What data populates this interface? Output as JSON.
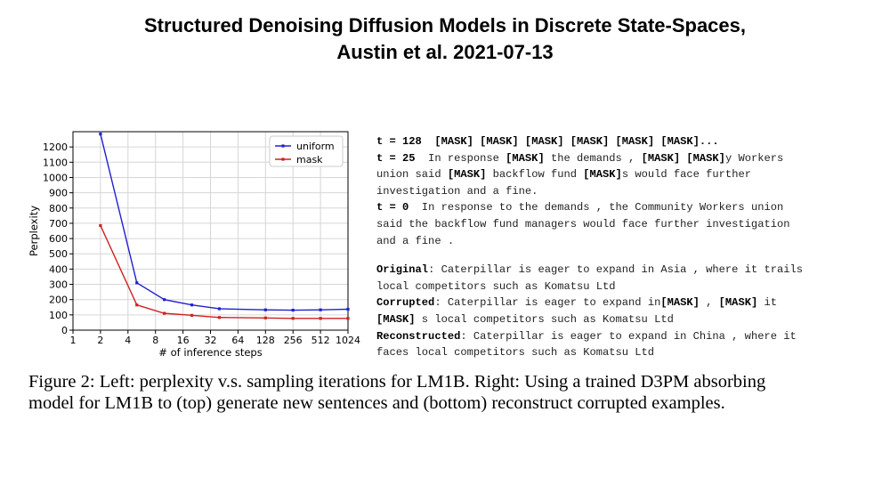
{
  "page_title": {
    "line1": "Structured Denoising Diffusion Models in Discrete State-Spaces,",
    "line2": "Austin et al. 2021-07-13"
  },
  "chart_data": {
    "type": "line",
    "title": "",
    "xlabel": "# of inference steps",
    "ylabel": "Perplexity",
    "x": [
      2,
      5,
      10,
      20,
      40,
      128,
      256,
      512,
      1024
    ],
    "x_scale": "log2",
    "xticks": [
      "1",
      "2",
      "4",
      "8",
      "16",
      "32",
      "64",
      "128",
      "256",
      "512",
      "1024"
    ],
    "yticks": [
      "0",
      "100",
      "200",
      "300",
      "400",
      "500",
      "600",
      "700",
      "800",
      "900",
      "1000",
      "1100",
      "1200"
    ],
    "xlim": [
      1,
      1024
    ],
    "ylim": [
      0,
      1300
    ],
    "grid": true,
    "legend": "top-right",
    "series": [
      {
        "name": "uniform",
        "color": "#2020d0",
        "values": [
          1285,
          310,
          200,
          165,
          140,
          133,
          131,
          133,
          137
        ]
      },
      {
        "name": "mask",
        "color": "#d02020",
        "values": [
          685,
          165,
          110,
          97,
          83,
          80,
          77,
          77,
          77
        ]
      }
    ]
  },
  "samples": {
    "t128": {
      "label": "t = 128",
      "text": "  [MASK] [MASK] [MASK] [MASK] [MASK] [MASK]..."
    },
    "t25": {
      "label": "t = 25",
      "l1a": "  In response ",
      "l1m1": "[MASK]",
      "l1b": " the demands , ",
      "l1m2": "[MASK] [MASK]",
      "l1c": "y Workers",
      "l2a": "union said ",
      "l2m1": "[MASK]",
      "l2b": " backflow fund ",
      "l2m2": "[MASK]",
      "l2c": "s would face further",
      "l3": "investigation and a fine."
    },
    "t0": {
      "label": "t = 0",
      "l1": "  In response to the demands , the Community Workers union",
      "l2": "said the backflow fund managers would face further investigation",
      "l3": "and a fine ."
    },
    "original": {
      "label": "Original",
      "l1": ": Caterpillar is eager to expand in Asia , where it trails",
      "l2": "local competitors such as Komatsu Ltd"
    },
    "corrupted": {
      "label": "Corrupted",
      "l1a": ": Caterpillar is eager to expand in",
      "l1m1": "[MASK]",
      "l1b": " , ",
      "l1m2": "[MASK]",
      "l1c": " it",
      "l2m": "[MASK]",
      "l2": " s local competitors such as Komatsu Ltd"
    },
    "reconstructed": {
      "label": "Reconstructed",
      "l1": ": Caterpillar is eager to expand in China , where it",
      "l2": "faces local competitors such as Komatsu Ltd"
    }
  },
  "caption": {
    "line1": "Figure 2: Left: perplexity v.s. sampling iterations for LM1B. Right: Using a trained D3PM absorbing",
    "line2": "model for LM1B to (top) generate new sentences and (bottom) reconstruct corrupted examples."
  }
}
